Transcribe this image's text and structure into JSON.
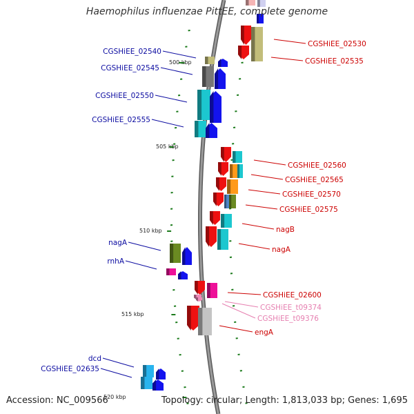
{
  "title": "Haemophilus influenzae PittEE, complete genome",
  "footer": {
    "accession": "Accession: NC_009566",
    "topology": "Topology: circular; Length: 1,813,033 bp; Genes: 1,695"
  },
  "ticks": [
    {
      "kbp": 500,
      "label": "500 kbp"
    },
    {
      "kbp": 505,
      "label": "505 kbp"
    },
    {
      "kbp": 510,
      "label": "510 kbp"
    },
    {
      "kbp": 515,
      "label": "515 kbp"
    },
    {
      "kbp": 520,
      "label": "520 kbp"
    }
  ],
  "colors": {
    "backbone": "#7a7a7a",
    "tick": "#1a7a1a",
    "left_label": "#0a0aa0",
    "right_label": "#cc0000",
    "trna_label": "#e67fb0"
  },
  "labels": [
    {
      "text": "CGSHiEE_02530",
      "side": "right",
      "kind": "gene"
    },
    {
      "text": "CGSHiEE_02535",
      "side": "right",
      "kind": "gene"
    },
    {
      "text": "CGSHiEE_02540",
      "side": "left",
      "kind": "gene"
    },
    {
      "text": "CGSHiEE_02545",
      "side": "left",
      "kind": "gene"
    },
    {
      "text": "CGSHiEE_02550",
      "side": "left",
      "kind": "gene"
    },
    {
      "text": "CGSHiEE_02555",
      "side": "left",
      "kind": "gene"
    },
    {
      "text": "CGSHiEE_02560",
      "side": "right",
      "kind": "gene"
    },
    {
      "text": "CGSHiEE_02565",
      "side": "right",
      "kind": "gene"
    },
    {
      "text": "CGSHiEE_02570",
      "side": "right",
      "kind": "gene"
    },
    {
      "text": "CGSHiEE_02575",
      "side": "right",
      "kind": "gene"
    },
    {
      "text": "nagB",
      "side": "right",
      "kind": "gene"
    },
    {
      "text": "nagA",
      "side": "right",
      "kind": "gene"
    },
    {
      "text": "nagA",
      "side": "left",
      "kind": "gene"
    },
    {
      "text": "rnhA",
      "side": "left",
      "kind": "gene"
    },
    {
      "text": "CGSHiEE_02600",
      "side": "right",
      "kind": "gene"
    },
    {
      "text": "CGSHiEE_t09374",
      "side": "right",
      "kind": "trna"
    },
    {
      "text": "CGSHiEE_t09376",
      "side": "right",
      "kind": "trna"
    },
    {
      "text": "engA",
      "side": "right",
      "kind": "gene"
    },
    {
      "text": "dcd",
      "side": "left",
      "kind": "gene"
    },
    {
      "text": "CGSHiEE_02635",
      "side": "left",
      "kind": "gene"
    }
  ]
}
